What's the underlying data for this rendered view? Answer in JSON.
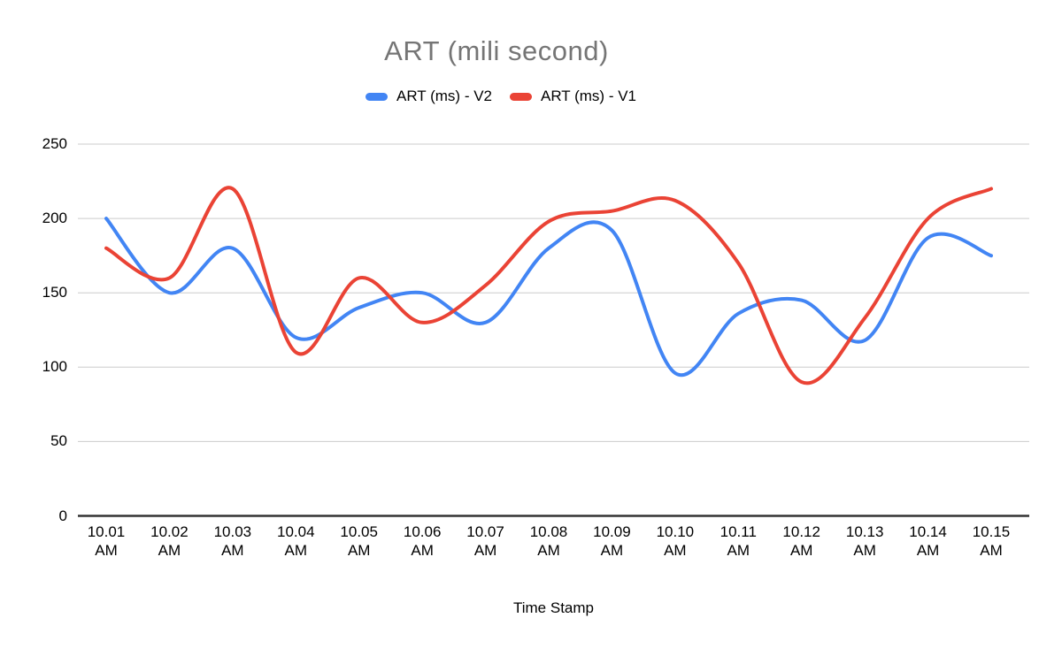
{
  "chart_data": {
    "type": "line",
    "title": "ART (mili second)",
    "xlabel": "Time Stamp",
    "ylabel": "",
    "categories": [
      "10.01 AM",
      "10.02 AM",
      "10.03 AM",
      "10.04 AM",
      "10.05 AM",
      "10.06 AM",
      "10.07 AM",
      "10.08 AM",
      "10.09 AM",
      "10.10 AM",
      "10.11 AM",
      "10.12 AM",
      "10.13 AM",
      "10.14 AM",
      "10.15 AM"
    ],
    "y_ticks": [
      0,
      50,
      100,
      150,
      200,
      250
    ],
    "ylim": [
      0,
      250
    ],
    "grid": true,
    "legend_position": "top",
    "line_style": "smooth",
    "series": [
      {
        "name": "ART (ms) - V2",
        "color": "#4285F4",
        "values": [
          200,
          150,
          180,
          120,
          140,
          150,
          130,
          180,
          192,
          96,
          136,
          145,
          118,
          187,
          175
        ]
      },
      {
        "name": "ART (ms) - V1",
        "color": "#EA4335",
        "values": [
          180,
          160,
          220,
          110,
          160,
          130,
          155,
          198,
          205,
          212,
          170,
          90,
          133,
          200,
          220
        ]
      }
    ]
  },
  "styles": {
    "title_color": "#757575",
    "grid_color": "#cccccc",
    "axis_color": "#333333",
    "label_color": "#000000",
    "background": "#ffffff"
  }
}
